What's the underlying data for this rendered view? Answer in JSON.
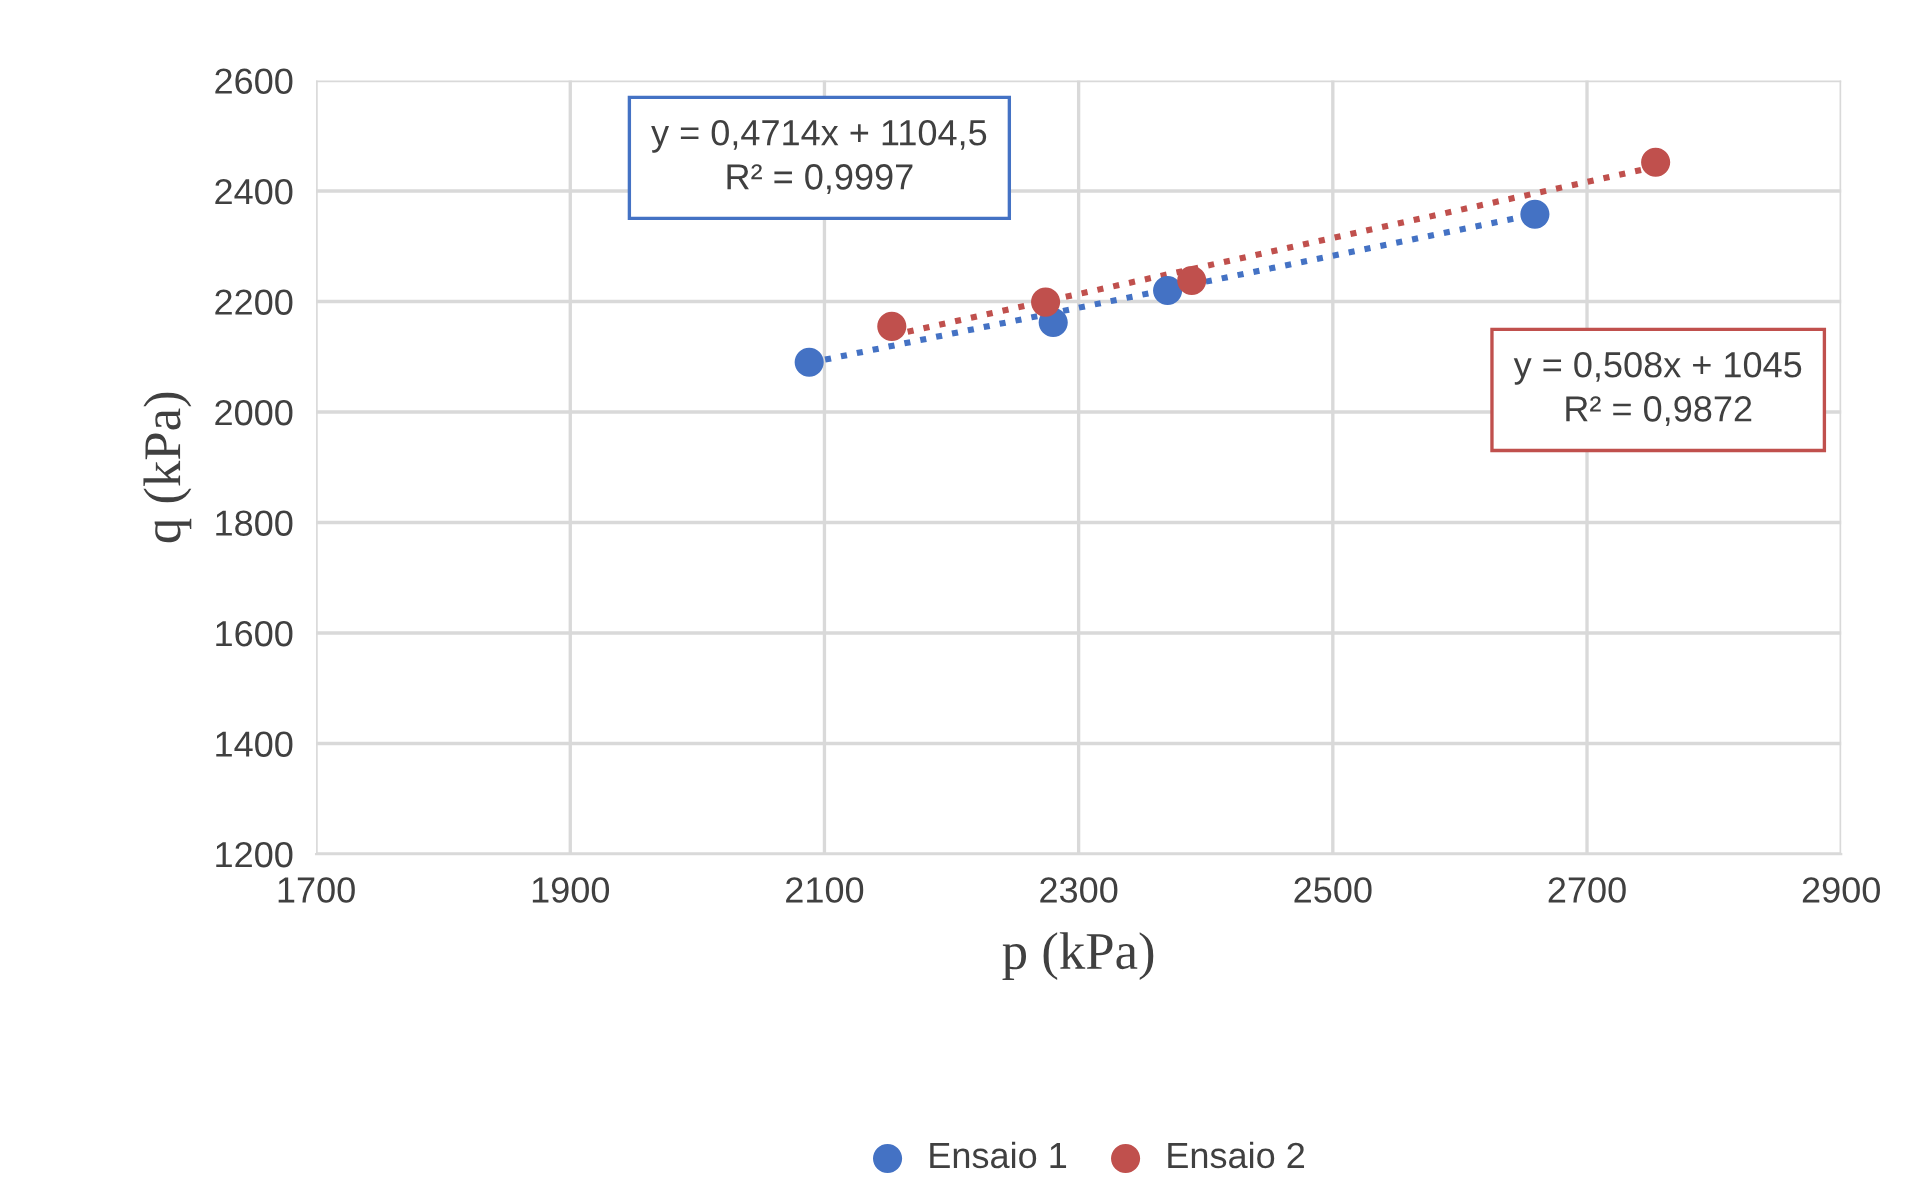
{
  "chart_data": {
    "type": "scatter",
    "xlabel": "p (kPa)",
    "ylabel": "q (kPa)",
    "xlim": [
      1700,
      2900
    ],
    "xticks": [
      1700,
      1900,
      2100,
      2300,
      2500,
      2700,
      2900
    ],
    "ylim": [
      1200,
      2600
    ],
    "yticks": [
      1200,
      1400,
      1600,
      1800,
      2000,
      2200,
      2400,
      2600
    ],
    "grid": true,
    "legend": "bottom",
    "marker": "circle",
    "series": [
      {
        "name": "Ensaio 1",
        "color": "#4472c4",
        "x": [
          2088,
          2280,
          2370,
          2659
        ],
        "values": [
          2090,
          2162,
          2220,
          2358
        ]
      },
      {
        "name": "Ensaio 2",
        "color": "#c0504d",
        "x": [
          2153,
          2274,
          2389,
          2754
        ],
        "values": [
          2155,
          2199,
          2238,
          2452
        ]
      },
      {
        "type": "line",
        "color": "#4472c4",
        "line_style": "dotted",
        "marker": "none",
        "x": [
          2088,
          2659
        ],
        "values": [
          2089,
          2358
        ]
      },
      {
        "type": "line",
        "color": "#c0504d",
        "line_style": "dotted",
        "marker": "none",
        "x": [
          2153,
          2754
        ],
        "values": [
          2139,
          2444
        ]
      }
    ],
    "annotations": [
      "y = 0,4714x + 1104,5\nR² = 0,9997",
      "y = 0,508x + 1045\nR² = 0,9872"
    ]
  }
}
